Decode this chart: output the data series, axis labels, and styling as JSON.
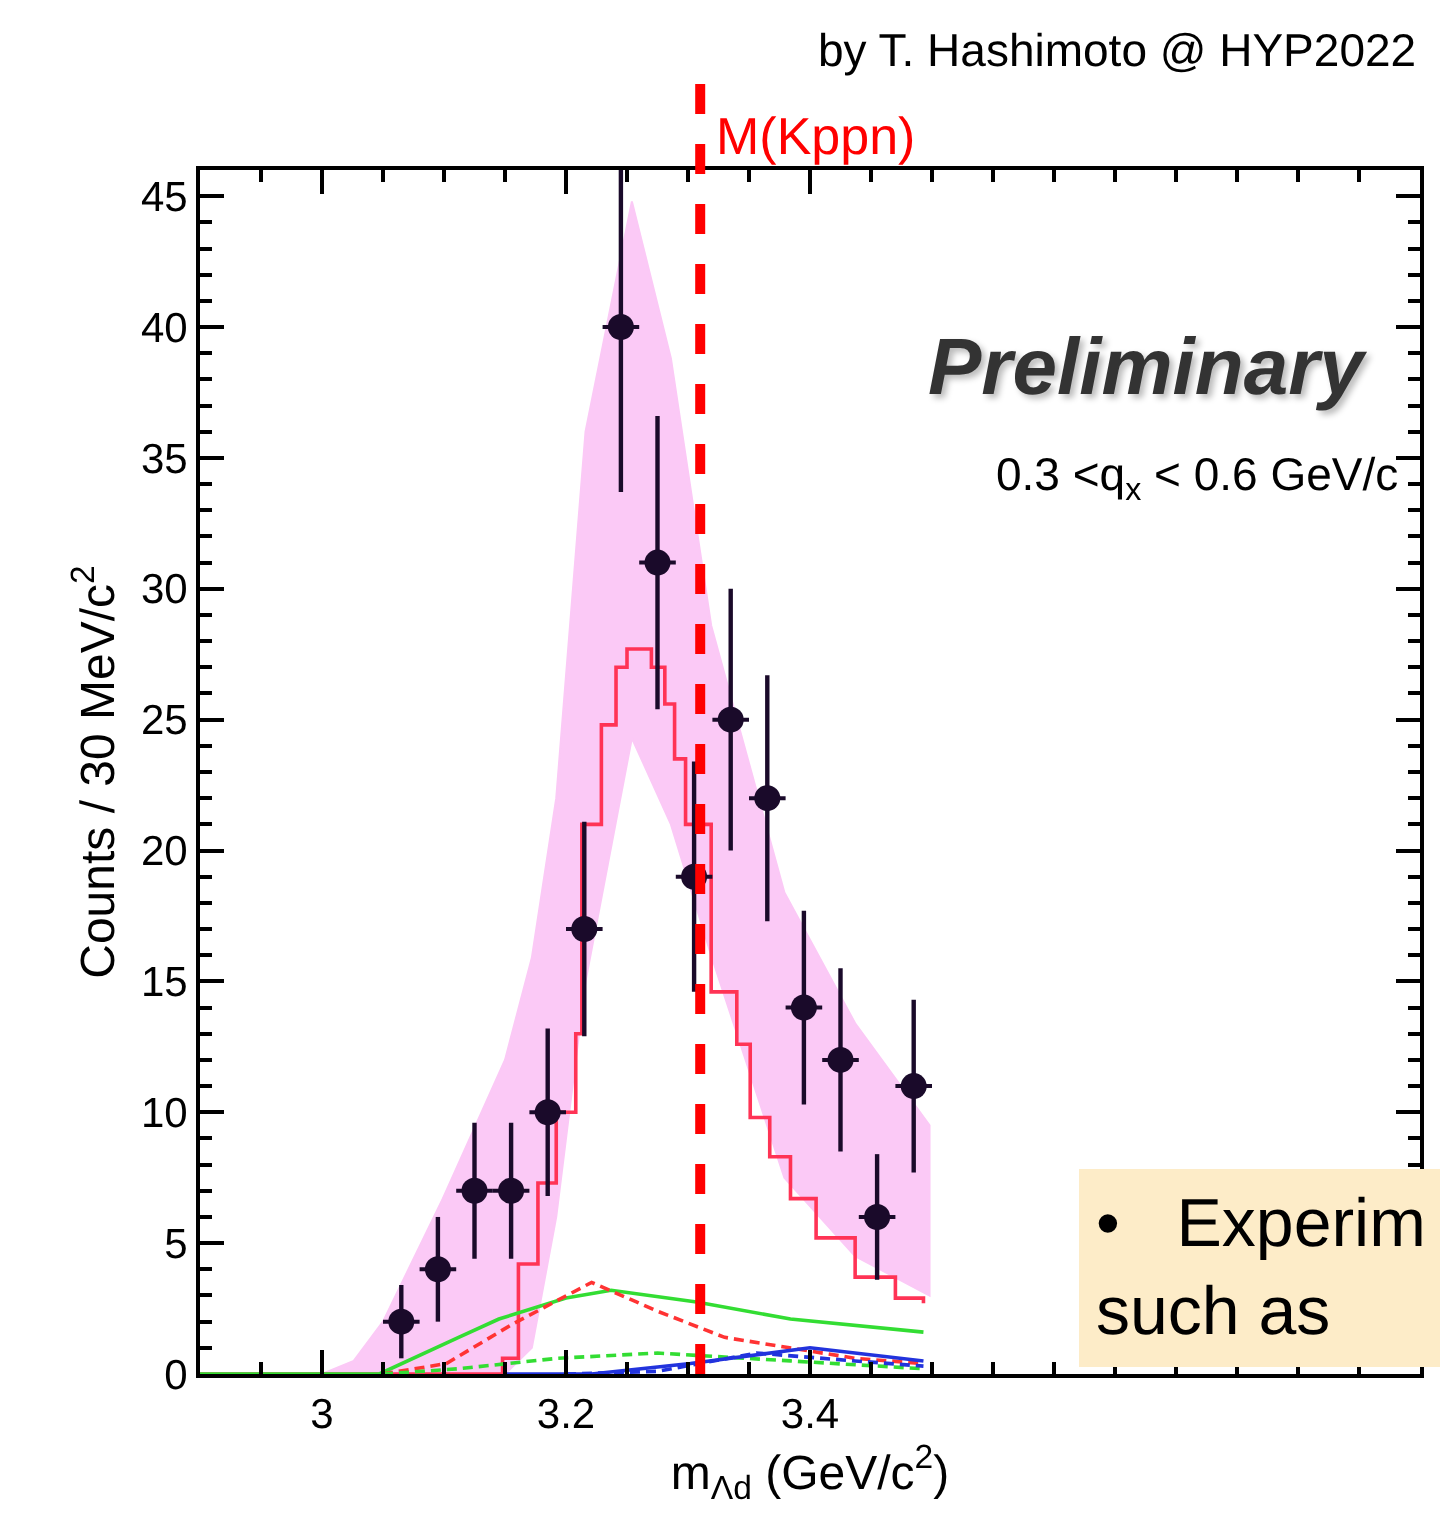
{
  "chart_data": {
    "type": "scatter",
    "xlabel": "m$_{Λd}$ (GeV/c$^{2}$)",
    "ylabel": "Counts / 30 MeV/c$^{2}$",
    "annotations": [
      "by T. Hashimoto @ HYP2022",
      "Preliminary",
      "0.3 <q$_{x}$ < 0.6 GeV/c",
      "•   Experim\nsuch as"
    ],
    "xlim": [
      2.9,
      3.9
    ],
    "xticks": [
      3,
      3.2,
      3.4
    ],
    "ylim": [
      0,
      46
    ],
    "yticks": [
      0,
      5,
      10,
      15,
      20,
      25,
      30,
      35,
      40,
      45
    ],
    "ref_lines": [
      {
        "axis": "x",
        "value": 3.31,
        "label": "M(Kppn)",
        "color": "#ff0000",
        "line_style": "dashed"
      }
    ],
    "series": [
      {
        "type": "line",
        "color": "#fbc9f6",
        "x": [
          3.0,
          3.026,
          3.05,
          3.099,
          3.15,
          3.172,
          3.192,
          3.216,
          3.254,
          3.286,
          3.319,
          3.379,
          3.437,
          3.498
        ],
        "values": [
          null,
          null,
          null,
          null,
          null,
          null,
          null,
          null,
          null,
          null,
          null,
          null,
          null,
          null
        ],
        "lower": [
          0,
          0,
          0,
          0,
          0,
          1,
          6,
          15,
          24.3,
          21,
          16,
          7.5,
          4.5,
          3
        ],
        "upper": [
          0,
          0.5,
          2,
          6.7,
          12,
          15.9,
          22,
          36,
          44.8,
          38.8,
          28.6,
          18.4,
          13.4,
          9.5
        ]
      },
      {
        "type": "step",
        "color": "#ff3355",
        "x": [
          2.9,
          3.148,
          3.161,
          3.177,
          3.192,
          3.208,
          3.213,
          3.229,
          3.241,
          3.25,
          3.27,
          3.281,
          3.289,
          3.298,
          3.319,
          3.34,
          3.351,
          3.367,
          3.384,
          3.405,
          3.437,
          3.47,
          3.493
        ],
        "values": [
          0,
          0.6,
          4.2,
          7.3,
          10,
          13,
          21,
          24.8,
          27,
          27.7,
          27,
          25.6,
          23.5,
          21,
          14.6,
          12.6,
          9.8,
          8.3,
          6.7,
          5.2,
          3.7,
          2.9,
          2.7
        ]
      },
      {
        "type": "line",
        "color": "#33dd33",
        "line_style": "solid",
        "x": [
          2.9,
          3.047,
          3.112,
          3.145,
          3.2,
          3.237,
          3.307,
          3.384,
          3.493
        ],
        "values": [
          0,
          0,
          1.4,
          2.1,
          2.9,
          3.2,
          2.75,
          2.1,
          1.6
        ]
      },
      {
        "type": "line",
        "color": "#ff3333",
        "line_style": "dashed",
        "x": [
          3.05,
          3.102,
          3.156,
          3.221,
          3.275,
          3.33,
          3.437,
          3.493
        ],
        "values": [
          0,
          0.4,
          1.9,
          3.5,
          2.4,
          1.4,
          0.6,
          0.4
        ]
      },
      {
        "type": "line",
        "color": "#33dd33",
        "line_style": "dashed",
        "x": [
          3.05,
          3.112,
          3.193,
          3.275,
          3.384,
          3.493
        ],
        "values": [
          0,
          0.2,
          0.6,
          0.8,
          0.5,
          0.2
        ]
      },
      {
        "type": "line",
        "color": "#2233dd",
        "line_style": "solid",
        "x": [
          3.15,
          3.221,
          3.302,
          3.4,
          3.493
        ],
        "values": [
          0,
          0,
          0.4,
          1.0,
          0.5
        ]
      },
      {
        "type": "line",
        "color": "#2233dd",
        "line_style": "dashed",
        "x": [
          3.2,
          3.275,
          3.356,
          3.437,
          3.493
        ],
        "values": [
          0,
          0.1,
          0.8,
          0.5,
          0.3
        ]
      },
      {
        "color": "#1a0a2a",
        "marker": "circle",
        "x": [
          3.065,
          3.095,
          3.125,
          3.155,
          3.185,
          3.215,
          3.245,
          3.275,
          3.305,
          3.335,
          3.365,
          3.395,
          3.425,
          3.455,
          3.485
        ],
        "values": [
          2,
          4,
          7,
          7,
          10,
          17,
          40,
          31,
          19,
          25,
          22,
          14,
          12,
          6,
          11
        ],
        "errors": [
          1.4,
          2,
          2.6,
          2.6,
          3.2,
          4.1,
          6.3,
          5.6,
          4.4,
          5,
          4.7,
          3.7,
          3.5,
          2.4,
          3.3
        ],
        "xerrors": [
          0.015,
          0.015,
          0.015,
          0.015,
          0.015,
          0.015,
          0.015,
          0.015,
          0.015,
          0.015,
          0.015,
          0.015,
          0.015,
          0.015,
          0.015
        ]
      }
    ]
  }
}
